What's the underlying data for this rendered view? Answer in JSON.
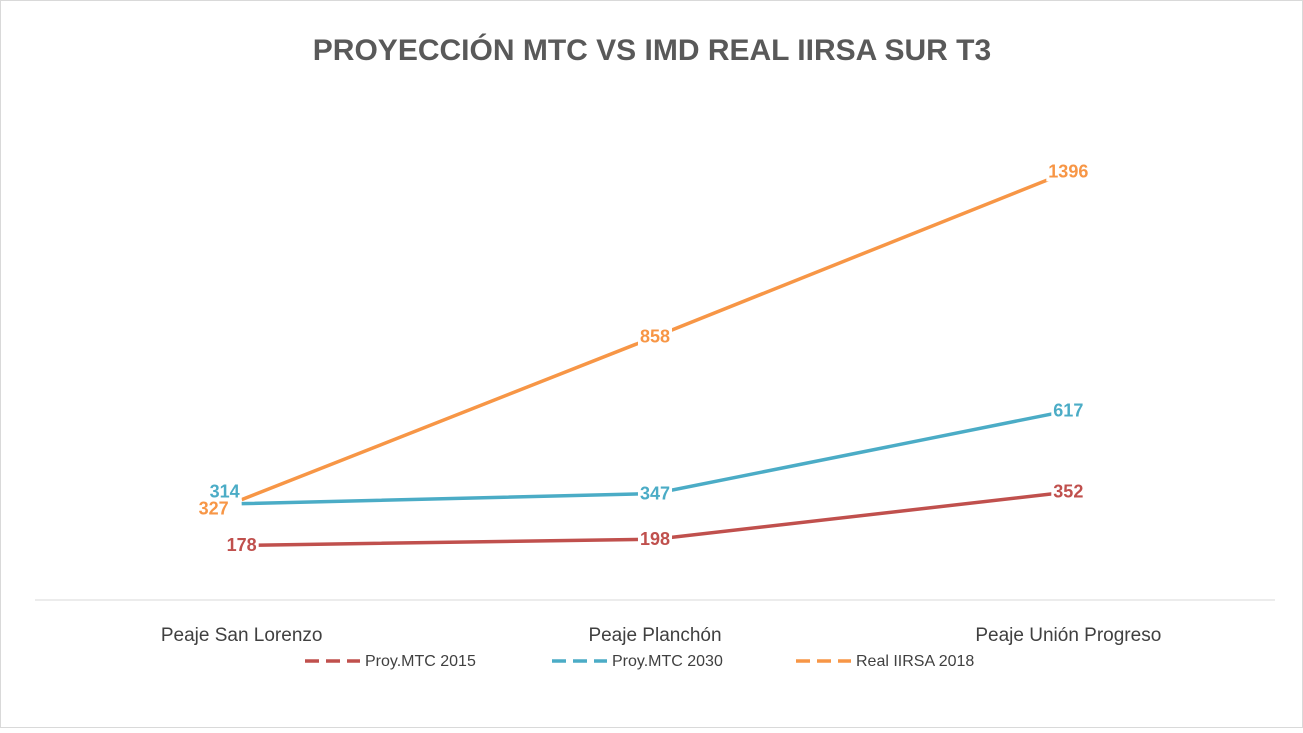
{
  "chart_data": {
    "type": "line",
    "title": "PROYECCIÓN MTC VS IMD REAL IIRSA SUR T3",
    "categories": [
      "Peaje San Lorenzo",
      "Peaje Planchón",
      "Peaje Unión Progreso"
    ],
    "series": [
      {
        "name": "Proy.MTC 2015",
        "color": "#c0504d",
        "values": [
          178,
          198,
          352
        ]
      },
      {
        "name": "Proy.MTC 2030",
        "color": "#4bacc6",
        "values": [
          314,
          347,
          617
        ]
      },
      {
        "name": "Real IIRSA 2018",
        "color": "#f79646",
        "values": [
          327,
          858,
          1396
        ]
      }
    ],
    "ylim": [
      0,
      1600
    ],
    "legend": "bottom"
  }
}
